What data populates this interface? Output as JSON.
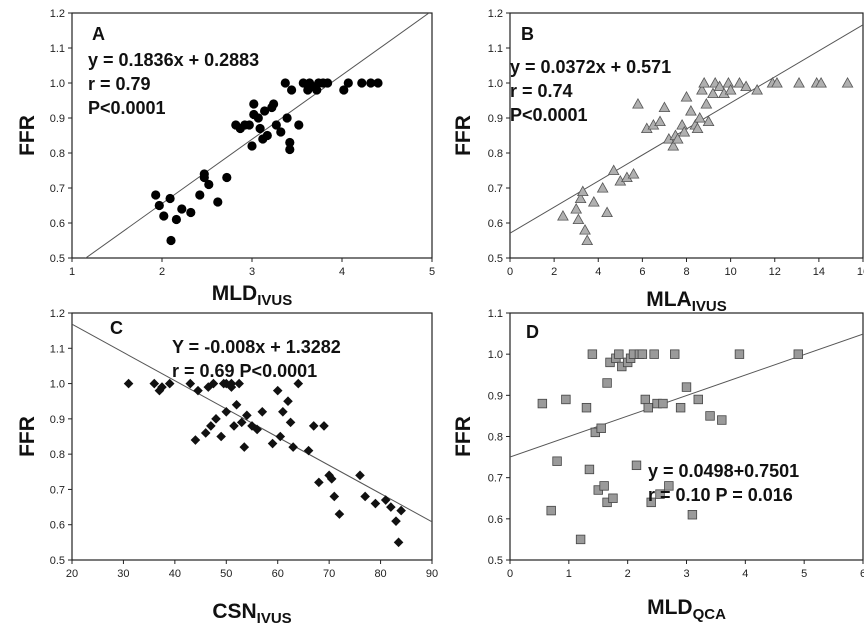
{
  "chart_data": [
    {
      "type": "scatter",
      "panel_label": "A",
      "ylabel": "FFR",
      "xlabel_main": "MLD",
      "xlabel_sub": "IVUS",
      "xlim": [
        1,
        5
      ],
      "ylim": [
        0.5,
        1.2
      ],
      "xticks": [
        1,
        2,
        3,
        4,
        5
      ],
      "yticks": [
        0.5,
        0.6,
        0.7,
        0.8,
        0.9,
        1.0,
        1.1,
        1.2
      ],
      "annotations": [
        "y = 0.1836x + 0.2883",
        "r = 0.79",
        "P<0.0001"
      ],
      "fit": {
        "slope": 0.1836,
        "intercept": 0.2883
      },
      "marker": "circle",
      "x": [
        1.93,
        1.97,
        2.02,
        2.09,
        2.1,
        2.16,
        2.22,
        2.32,
        2.42,
        2.47,
        2.47,
        2.52,
        2.62,
        2.72,
        2.82,
        2.87,
        2.92,
        2.97,
        3.0,
        3.02,
        3.02,
        3.07,
        3.09,
        3.12,
        3.14,
        3.17,
        3.22,
        3.24,
        3.27,
        3.32,
        3.37,
        3.39,
        3.42,
        3.42,
        3.44,
        3.52,
        3.57,
        3.62,
        3.64,
        3.67,
        3.72,
        3.74,
        3.79,
        3.84,
        4.02,
        4.07,
        4.22,
        4.32,
        4.4
      ],
      "y": [
        0.68,
        0.65,
        0.62,
        0.67,
        0.55,
        0.61,
        0.64,
        0.63,
        0.68,
        0.74,
        0.73,
        0.71,
        0.66,
        0.73,
        0.88,
        0.87,
        0.88,
        0.88,
        0.82,
        0.91,
        0.94,
        0.9,
        0.87,
        0.84,
        0.92,
        0.85,
        0.93,
        0.94,
        0.88,
        0.86,
        1.0,
        0.9,
        0.83,
        0.81,
        0.98,
        0.88,
        1.0,
        0.98,
        1.0,
        0.99,
        0.98,
        1.0,
        1.0,
        1.0,
        0.98,
        1.0,
        1.0,
        1.0,
        1.0
      ]
    },
    {
      "type": "scatter",
      "panel_label": "B",
      "ylabel": "FFR",
      "xlabel_main": "MLA",
      "xlabel_sub": "IVUS",
      "xlim": [
        0,
        16
      ],
      "ylim": [
        0.5,
        1.2
      ],
      "xticks": [
        0,
        2,
        4,
        6,
        8,
        10,
        12,
        14,
        16
      ],
      "yticks": [
        0.5,
        0.6,
        0.7,
        0.8,
        0.9,
        1.0,
        1.1,
        1.2
      ],
      "annotations": [
        "y = 0.0372x + 0.571",
        "r = 0.74",
        "P<0.0001"
      ],
      "fit": {
        "slope": 0.0372,
        "intercept": 0.571
      },
      "marker": "triangle",
      "x": [
        2.4,
        3.0,
        3.1,
        3.2,
        3.3,
        3.4,
        3.5,
        3.8,
        4.2,
        4.4,
        4.7,
        5.0,
        5.3,
        5.6,
        5.8,
        6.2,
        6.5,
        6.8,
        7.0,
        7.2,
        7.4,
        7.5,
        7.6,
        7.8,
        7.9,
        8.0,
        8.2,
        8.4,
        8.5,
        8.6,
        8.7,
        8.8,
        8.9,
        9.0,
        9.2,
        9.3,
        9.5,
        9.7,
        9.9,
        10.0,
        10.4,
        10.7,
        11.2,
        11.9,
        12.1,
        13.1,
        13.9,
        14.1,
        15.3
      ],
      "y": [
        0.62,
        0.64,
        0.61,
        0.67,
        0.69,
        0.58,
        0.55,
        0.66,
        0.7,
        0.63,
        0.75,
        0.72,
        0.73,
        0.74,
        0.94,
        0.87,
        0.88,
        0.89,
        0.93,
        0.84,
        0.82,
        0.85,
        0.84,
        0.88,
        0.86,
        0.96,
        0.92,
        0.88,
        0.87,
        0.9,
        0.98,
        1.0,
        0.94,
        0.89,
        0.97,
        1.0,
        0.99,
        0.97,
        1.0,
        0.98,
        1.0,
        0.99,
        0.98,
        1.0,
        1.0,
        1.0,
        1.0,
        1.0,
        1.0
      ]
    },
    {
      "type": "scatter",
      "panel_label": "C",
      "ylabel": "FFR",
      "xlabel_main": "CSN",
      "xlabel_sub": "IVUS",
      "xlim": [
        20,
        90
      ],
      "ylim": [
        0.5,
        1.2
      ],
      "xticks": [
        20,
        30,
        40,
        50,
        60,
        70,
        80,
        90
      ],
      "yticks": [
        0.5,
        0.6,
        0.7,
        0.8,
        0.9,
        1.0,
        1.1,
        1.2
      ],
      "annotations": [
        "Y = -0.008x + 1.3282",
        "r = 0.69 P<0.0001"
      ],
      "fit": {
        "slope": -0.008,
        "intercept": 1.3282
      },
      "marker": "diamond",
      "x": [
        31,
        36,
        37,
        37.5,
        39,
        43,
        44,
        44.5,
        46,
        46.5,
        47,
        47.5,
        48,
        49,
        49.5,
        50,
        50,
        51,
        51,
        51.5,
        52,
        52.5,
        53,
        53.5,
        54,
        55,
        56,
        57,
        59,
        60,
        60.5,
        61,
        62,
        62.5,
        63,
        64,
        66,
        67,
        68,
        69,
        70,
        70.5,
        71,
        72,
        76,
        77,
        79,
        81,
        82,
        83,
        83.5,
        84
      ],
      "y": [
        1.0,
        1.0,
        0.98,
        0.99,
        1.0,
        1.0,
        0.84,
        0.98,
        0.86,
        0.99,
        0.88,
        1.0,
        0.9,
        0.85,
        1.0,
        1.0,
        0.92,
        0.99,
        1.0,
        0.88,
        0.94,
        1.0,
        0.89,
        0.82,
        0.91,
        0.88,
        0.87,
        0.92,
        0.83,
        0.98,
        0.85,
        0.92,
        0.95,
        0.89,
        0.82,
        1.0,
        0.81,
        0.88,
        0.72,
        0.88,
        0.74,
        0.73,
        0.68,
        0.63,
        0.74,
        0.68,
        0.66,
        0.67,
        0.65,
        0.61,
        0.55,
        0.64
      ]
    },
    {
      "type": "scatter",
      "panel_label": "D",
      "ylabel": "FFR",
      "xlabel_main": "MLD",
      "xlabel_sub": "QCA",
      "xlim": [
        0,
        6
      ],
      "ylim": [
        0.5,
        1.1
      ],
      "xticks": [
        0,
        1,
        2,
        3,
        4,
        5,
        6
      ],
      "yticks": [
        0.5,
        0.6,
        0.7,
        0.8,
        0.9,
        1.0,
        1.1
      ],
      "annotations": [
        "y = 0.0498+0.7501",
        "r = 0.10 P = 0.016"
      ],
      "fit": {
        "slope": 0.0498,
        "intercept": 0.7501
      },
      "marker": "square",
      "x": [
        0.55,
        0.7,
        0.8,
        0.95,
        1.2,
        1.3,
        1.35,
        1.4,
        1.45,
        1.5,
        1.55,
        1.6,
        1.65,
        1.65,
        1.7,
        1.75,
        1.8,
        1.85,
        1.9,
        2.0,
        2.05,
        2.1,
        2.15,
        2.2,
        2.25,
        2.3,
        2.35,
        2.4,
        2.45,
        2.5,
        2.55,
        2.6,
        2.7,
        2.8,
        2.9,
        3.0,
        3.1,
        3.2,
        3.4,
        3.6,
        3.9,
        4.9
      ],
      "y": [
        0.88,
        0.62,
        0.74,
        0.89,
        0.55,
        0.87,
        0.72,
        1.0,
        0.81,
        0.67,
        0.82,
        0.68,
        0.93,
        0.64,
        0.98,
        0.65,
        0.99,
        1.0,
        0.97,
        0.98,
        0.99,
        1.0,
        0.73,
        1.0,
        1.0,
        0.89,
        0.87,
        0.64,
        1.0,
        0.88,
        0.66,
        0.88,
        0.68,
        1.0,
        0.87,
        0.92,
        0.61,
        0.89,
        0.85,
        0.84,
        1.0,
        1.0
      ]
    }
  ]
}
